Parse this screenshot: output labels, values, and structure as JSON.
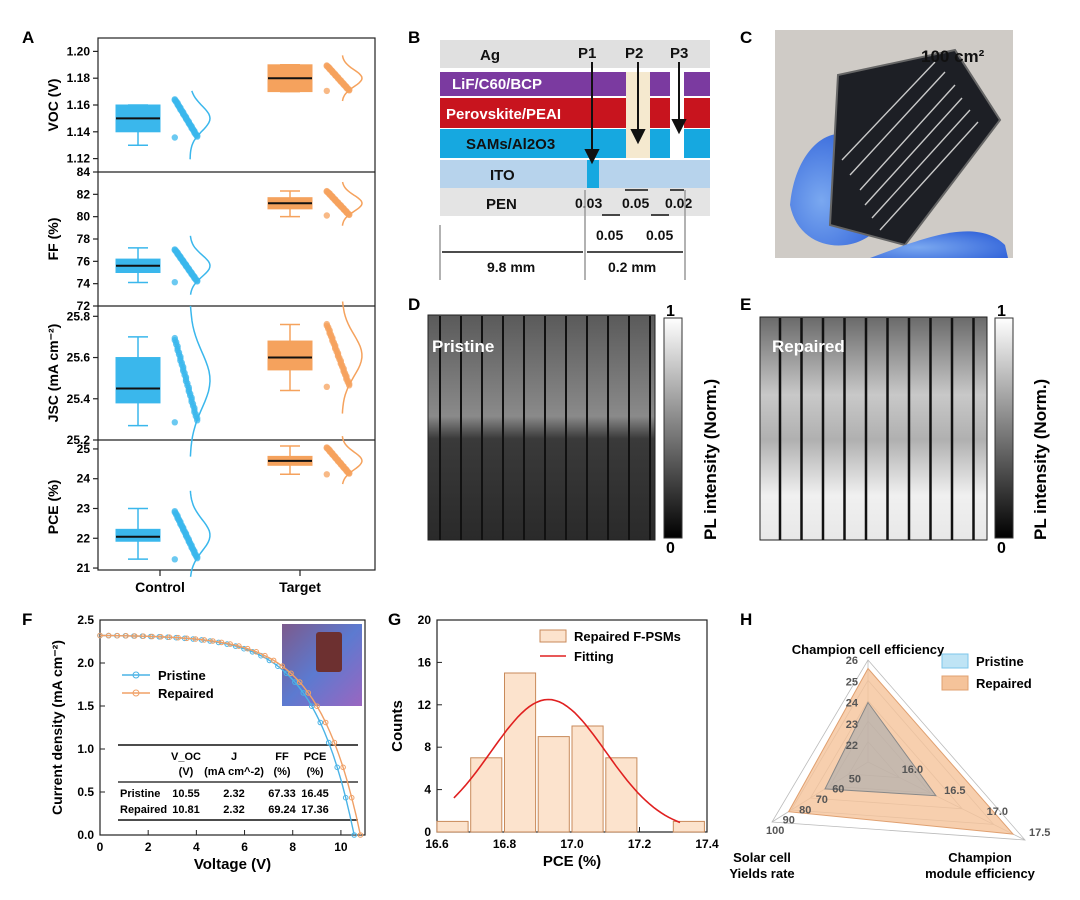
{
  "panel_labels": [
    "A",
    "B",
    "C",
    "D",
    "E",
    "F",
    "G",
    "H"
  ],
  "colors": {
    "control": "#3ab7ec",
    "target": "#f5a25d",
    "fit": "#e02020",
    "pristine": "#4ab3e6",
    "repaired": "#f0a066",
    "bar_fill": "#fce3cd"
  },
  "chart_data": [
    {
      "id": "A",
      "type": "box",
      "categories": [
        "Control",
        "Target"
      ],
      "panels": [
        {
          "ylabel": "V_OC (V)",
          "ylim": [
            1.11,
            1.21
          ],
          "ticks": [
            1.12,
            1.14,
            1.16,
            1.18,
            1.2
          ],
          "tick_labels": [
            "1.12",
            "1.14",
            "1.16",
            "1.18",
            "1.20"
          ],
          "boxes": [
            {
              "min": 1.13,
              "q1": 1.14,
              "median": 1.15,
              "q3": 1.16,
              "max": 1.16
            },
            {
              "min": 1.17,
              "q1": 1.17,
              "median": 1.18,
              "q3": 1.19,
              "max": 1.19
            }
          ]
        },
        {
          "ylabel": "FF (%)",
          "ylim": [
            72,
            84
          ],
          "ticks": [
            72,
            74,
            76,
            78,
            80,
            82,
            84
          ],
          "tick_labels": [
            "72",
            "74",
            "76",
            "78",
            "80",
            "82",
            "84"
          ],
          "boxes": [
            {
              "min": 74.1,
              "q1": 75.0,
              "median": 75.6,
              "q3": 76.2,
              "max": 77.2
            },
            {
              "min": 80.0,
              "q1": 80.7,
              "median": 81.2,
              "q3": 81.7,
              "max": 82.3
            }
          ]
        },
        {
          "ylabel": "J_SC (mA cm^-2)",
          "ylim": [
            25.2,
            25.85
          ],
          "ticks": [
            25.2,
            25.4,
            25.6,
            25.8
          ],
          "tick_labels": [
            "25.2",
            "25.4",
            "25.6",
            "25.8"
          ],
          "boxes": [
            {
              "min": 25.27,
              "q1": 25.38,
              "median": 25.45,
              "q3": 25.6,
              "max": 25.7
            },
            {
              "min": 25.44,
              "q1": 25.54,
              "median": 25.6,
              "q3": 25.68,
              "max": 25.76
            }
          ]
        },
        {
          "ylabel": "PCE (%)",
          "ylim": [
            20.8,
            25.3
          ],
          "ticks": [
            21,
            22,
            23,
            24,
            25
          ],
          "tick_labels": [
            "21",
            "22",
            "23",
            "24",
            "25"
          ],
          "boxes": [
            {
              "min": 21.3,
              "q1": 21.9,
              "median": 22.05,
              "q3": 22.3,
              "max": 23.0
            },
            {
              "min": 24.15,
              "q1": 24.45,
              "median": 24.6,
              "q3": 24.75,
              "max": 25.1
            }
          ]
        }
      ]
    },
    {
      "id": "F",
      "type": "line",
      "xlabel": "Voltage (V)",
      "ylabel": "Current density (mA cm^-2)",
      "xlim": [
        0,
        11
      ],
      "ylim": [
        0,
        2.5
      ],
      "xticks": [
        0,
        2,
        4,
        6,
        8,
        10
      ],
      "xtick_labels": [
        "0",
        "2",
        "4",
        "6",
        "8",
        "10"
      ],
      "yticks": [
        0,
        0.5,
        1.0,
        1.5,
        2.0,
        2.5
      ],
      "ytick_labels": [
        "0.0",
        "0.5",
        "1.0",
        "1.5",
        "2.0",
        "2.5"
      ],
      "series": [
        {
          "name": "Pristine",
          "voc": 10.55,
          "jsc": 2.32
        },
        {
          "name": "Repaired",
          "voc": 10.81,
          "jsc": 2.32
        }
      ]
    },
    {
      "id": "G",
      "type": "bar",
      "xlabel": "PCE (%)",
      "ylabel": "Counts",
      "xlim": [
        16.6,
        17.4
      ],
      "ylim": [
        0,
        20
      ],
      "xticks": [
        16.6,
        16.8,
        17.0,
        17.2,
        17.4
      ],
      "xtick_labels": [
        "16.6",
        "16.8",
        "17.0",
        "17.2",
        "17.4"
      ],
      "yticks": [
        0,
        4,
        8,
        12,
        16,
        20
      ],
      "ytick_labels": [
        "0",
        "4",
        "8",
        "12",
        "16",
        "20"
      ],
      "bin_width": 0.1,
      "bins": [
        16.6,
        16.7,
        16.8,
        16.9,
        17.0,
        17.1,
        17.3
      ],
      "values": [
        1,
        7,
        15,
        9,
        10,
        7,
        1
      ],
      "legend": [
        "Repaired F-PSMs",
        "Fitting"
      ],
      "fit": {
        "mean": 16.93,
        "sigma": 0.17,
        "peak": 12.5
      }
    },
    {
      "id": "H",
      "type": "radar",
      "axes": [
        "Champion cell efficiency",
        "Champion module efficiency",
        "Solar cell Yields rate"
      ],
      "axis_ticks": [
        {
          "values": [
            22,
            23,
            24,
            25,
            26
          ],
          "labels": [
            "22",
            "23",
            "24",
            "25",
            "26"
          ]
        },
        {
          "values": [
            16.0,
            16.5,
            17.0,
            17.5
          ],
          "labels": [
            "16.0",
            "16.5",
            "17.0",
            "17.5"
          ]
        },
        {
          "values": [
            50,
            60,
            70,
            80,
            90,
            100
          ],
          "labels": [
            "50",
            "60",
            "70",
            "80",
            "90",
            "100"
          ]
        }
      ],
      "series": [
        {
          "name": "Pristine",
          "values": [
            24.0,
            16.45,
            68
          ]
        },
        {
          "name": "Repaired",
          "values": [
            25.6,
            17.36,
            90
          ]
        }
      ]
    }
  ],
  "panel_a": {
    "x_categories": [
      "Control",
      "Target"
    ]
  },
  "panel_b": {
    "layers": [
      "Ag",
      "LiF/C60/BCP",
      "Perovskite/PEAI",
      "SAMs/Al2O3",
      "ITO",
      "PEN"
    ],
    "scribes": [
      "P1",
      "P2",
      "P3"
    ],
    "gap_labels": [
      "0.03",
      "0.05",
      "0.02"
    ],
    "spacing_labels": [
      "0.05",
      "0.05"
    ],
    "width_labels": [
      "9.8 mm",
      "0.2 mm"
    ]
  },
  "panel_c": {
    "area_label": "100 cm²"
  },
  "panel_d": {
    "label": "Pristine",
    "colorbar_max": "1",
    "colorbar_min": "0",
    "colorbar_title": "PL intensity (Norm.)"
  },
  "panel_e": {
    "label": "Repaired",
    "colorbar_max": "1",
    "colorbar_min": "0",
    "colorbar_title": "PL intensity (Norm.)"
  },
  "panel_f": {
    "table_head1": [
      "V_OC",
      "J",
      "FF",
      "PCE"
    ],
    "table_head2": [
      "(V)",
      "(mA cm^-2)",
      "(%)",
      "(%)"
    ],
    "table_rows": [
      {
        "name": "Pristine",
        "voc": "10.55",
        "j": "2.32",
        "ff": "67.33",
        "pce": "16.45"
      },
      {
        "name": "Repaired",
        "voc": "10.81",
        "j": "2.32",
        "ff": "69.24",
        "pce": "17.36"
      }
    ]
  }
}
